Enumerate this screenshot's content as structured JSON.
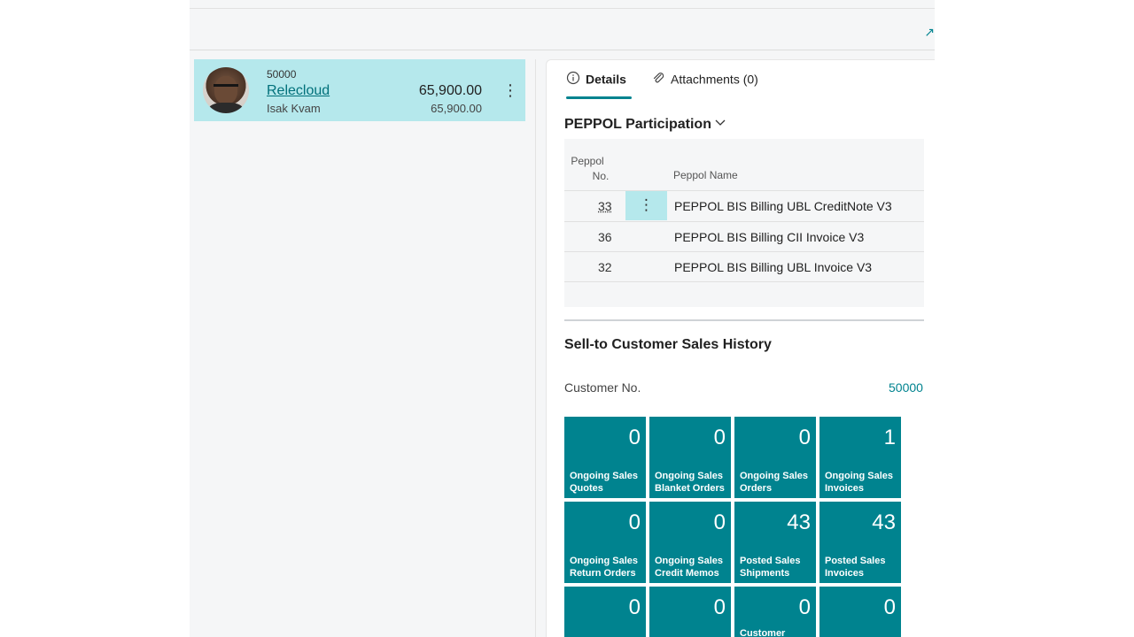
{
  "customer_card": {
    "number": "50000",
    "name": "Relecloud",
    "contact": "Isak Kvam",
    "amount": "65,900.00",
    "amount_secondary": "65,900.00"
  },
  "factbox": {
    "tabs": [
      {
        "label": "Details",
        "icon": "info-icon"
      },
      {
        "label": "Attachments (0)",
        "icon": "paperclip-icon"
      }
    ],
    "peppol": {
      "title": "PEPPOL Participation",
      "columns": {
        "no_line1": "Peppol",
        "no_line2": "No.",
        "name": "Peppol Name"
      },
      "rows": [
        {
          "no": "33",
          "name": "PEPPOL BIS Billing UBL CreditNote V3"
        },
        {
          "no": "36",
          "name": "PEPPOL BIS Billing CII Invoice V3"
        },
        {
          "no": "32",
          "name": "PEPPOL BIS Billing UBL Invoice V3"
        }
      ]
    },
    "history": {
      "title": "Sell-to Customer Sales History",
      "customer_no_label": "Customer No.",
      "customer_no_value": "50000",
      "tiles": [
        {
          "value": "0",
          "line1": "Ongoing Sales",
          "line2": "Quotes"
        },
        {
          "value": "0",
          "line1": "Ongoing Sales",
          "line2": "Blanket Orders"
        },
        {
          "value": "0",
          "line1": "Ongoing Sales",
          "line2": "Orders"
        },
        {
          "value": "1",
          "line1": "Ongoing Sales",
          "line2": "Invoices"
        },
        {
          "value": "0",
          "line1": "Ongoing Sales",
          "line2": "Return Orders"
        },
        {
          "value": "0",
          "line1": "Ongoing Sales",
          "line2": "Credit Memos"
        },
        {
          "value": "43",
          "line1": "Posted Sales",
          "line2": "Shipments"
        },
        {
          "value": "43",
          "line1": "Posted Sales",
          "line2": "Invoices"
        },
        {
          "value": "0",
          "line1": "",
          "line2": ""
        },
        {
          "value": "0",
          "line1": "",
          "line2": ""
        },
        {
          "value": "0",
          "line1": "Customer",
          "line2": ""
        },
        {
          "value": "0",
          "line1": "",
          "line2": ""
        }
      ]
    }
  },
  "colors": {
    "accent": "#00838f",
    "selection": "#b5e8ec",
    "tile": "#00838f"
  }
}
